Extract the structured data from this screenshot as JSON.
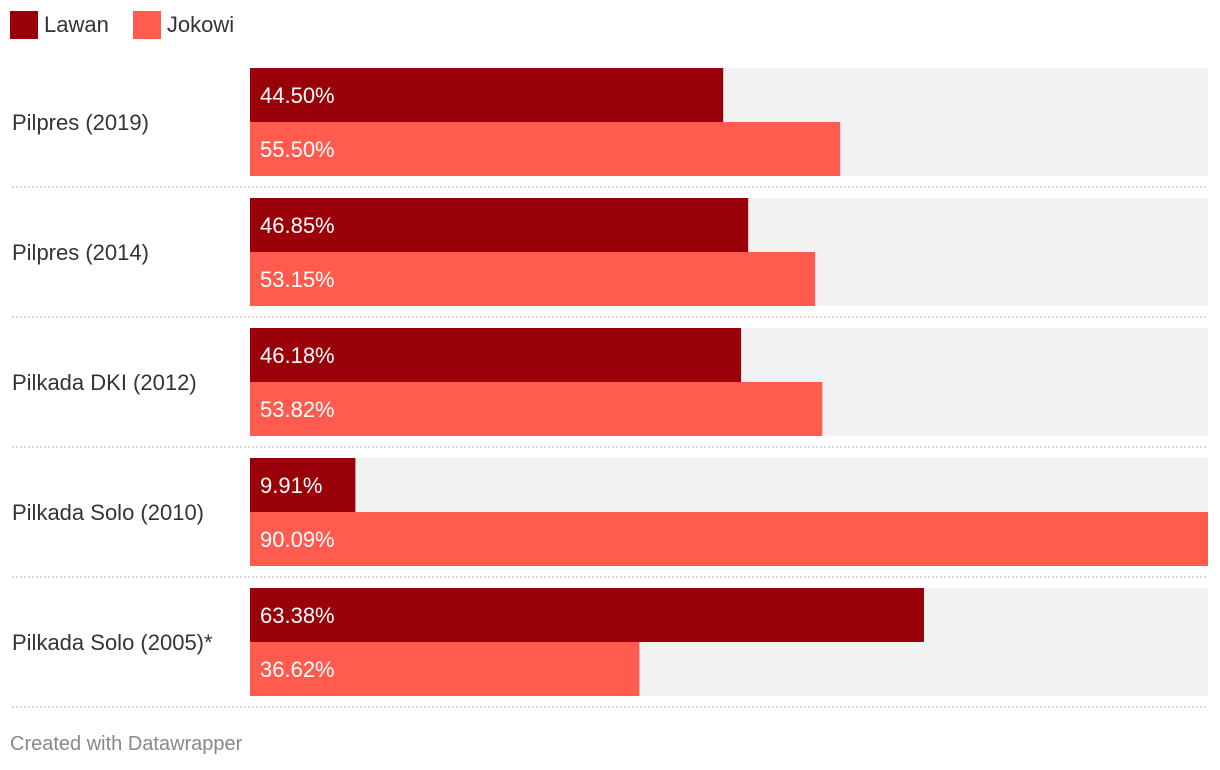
{
  "chart_data": {
    "type": "bar",
    "orientation": "horizontal",
    "categories": [
      "Pilpres (2019)",
      "Pilpres (2014)",
      "Pilkada DKI (2012)",
      "Pilkada Solo (2010)",
      "Pilkada Solo (2005)*"
    ],
    "series": [
      {
        "name": "Lawan",
        "color": "#990008",
        "values": [
          44.5,
          46.85,
          46.18,
          9.91,
          63.38
        ],
        "labels": [
          "44.50%",
          "46.85%",
          "46.18%",
          "9.91%",
          "63.38%"
        ]
      },
      {
        "name": "Jokowi",
        "color": "#ff5c4f",
        "values": [
          55.5,
          53.15,
          53.82,
          90.09,
          36.62
        ],
        "labels": [
          "55.50%",
          "53.15%",
          "53.82%",
          "90.09%",
          "36.62%"
        ]
      }
    ],
    "xlim": [
      0,
      90.09
    ],
    "background_bar_color": "#f2f2f2",
    "grid": false,
    "legend": "top-left",
    "title": "",
    "xlabel": "",
    "ylabel": ""
  },
  "footer": {
    "credit": "Created with Datawrapper"
  }
}
